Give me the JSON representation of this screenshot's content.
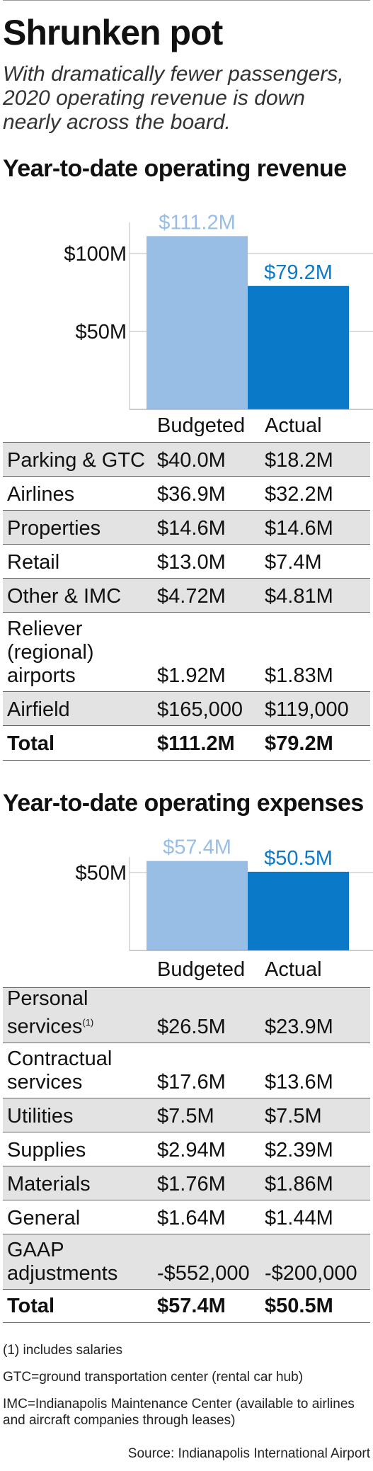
{
  "title": "Shrunken pot",
  "subtitle": "With dramatically fewer passengers, 2020 operating revenue is down nearly across the board.",
  "colors": {
    "budgeted": "#98bee6",
    "actual": "#0a79c8",
    "budgeted_label": "#98bee6",
    "actual_label": "#0a79c8",
    "shade": "#e3e3e3"
  },
  "chart_data": [
    {
      "type": "bar",
      "title": "Year-to-date operating revenue",
      "categories": [
        "Budgeted",
        "Actual"
      ],
      "values": [
        111.2,
        79.2
      ],
      "value_labels": [
        "$111.2M",
        "$79.2M"
      ],
      "unit": "$M",
      "yticks": [
        50,
        100
      ],
      "ytick_labels": [
        "$50M",
        "$100M"
      ],
      "ylim": [
        0,
        120
      ]
    },
    {
      "type": "bar",
      "title": "Year-to-date operating expenses",
      "categories": [
        "Budgeted",
        "Actual"
      ],
      "values": [
        57.4,
        50.5
      ],
      "value_labels": [
        "$57.4M",
        "$50.5M"
      ],
      "unit": "$M",
      "yticks": [
        50
      ],
      "ytick_labels": [
        "$50M"
      ],
      "ylim": [
        0,
        60
      ]
    }
  ],
  "revenue": {
    "heading": "Year-to-date operating revenue",
    "col_budgeted": "Budgeted",
    "col_actual": "Actual",
    "rows": [
      {
        "label": "Parking & GTC",
        "budgeted": "$40.0M",
        "actual": "$18.2M"
      },
      {
        "label": "Airlines",
        "budgeted": "$36.9M",
        "actual": "$32.2M"
      },
      {
        "label": "Properties",
        "budgeted": "$14.6M",
        "actual": "$14.6M"
      },
      {
        "label": "Retail",
        "budgeted": "$13.0M",
        "actual": "$7.4M"
      },
      {
        "label": "Other & IMC",
        "budgeted": "$4.72M",
        "actual": "$4.81M"
      },
      {
        "label": "Reliever (regional) airports",
        "budgeted": "$1.92M",
        "actual": "$1.83M"
      },
      {
        "label": "Airfield",
        "budgeted": "$165,000",
        "actual": "$119,000"
      },
      {
        "label": "Total",
        "budgeted": "$111.2M",
        "actual": "$79.2M"
      }
    ]
  },
  "expenses": {
    "heading": "Year-to-date operating expenses",
    "col_budgeted": "Budgeted",
    "col_actual": "Actual",
    "rows": [
      {
        "label": "Personal services",
        "label_sup": "(1)",
        "budgeted": "$26.5M",
        "actual": "$23.9M"
      },
      {
        "label": "Contractual services",
        "budgeted": "$17.6M",
        "actual": "$13.6M"
      },
      {
        "label": "Utilities",
        "budgeted": "$7.5M",
        "actual": "$7.5M"
      },
      {
        "label": "Supplies",
        "budgeted": "$2.94M",
        "actual": "$2.39M"
      },
      {
        "label": "Materials",
        "budgeted": "$1.76M",
        "actual": "$1.86M"
      },
      {
        "label": "General",
        "budgeted": "$1.64M",
        "actual": "$1.44M"
      },
      {
        "label": "GAAP adjustments",
        "budgeted": "-$552,000",
        "actual": "-$200,000"
      },
      {
        "label": "Total",
        "budgeted": "$57.4M",
        "actual": "$50.5M"
      }
    ]
  },
  "notes": {
    "note1": "(1) includes salaries",
    "gtc": "GTC=ground transportation center (rental car hub)",
    "imc": "IMC=Indianapolis Maintenance Center (available to airlines and aircraft companies through leases)",
    "source": "Source: Indianapolis International Airport"
  }
}
